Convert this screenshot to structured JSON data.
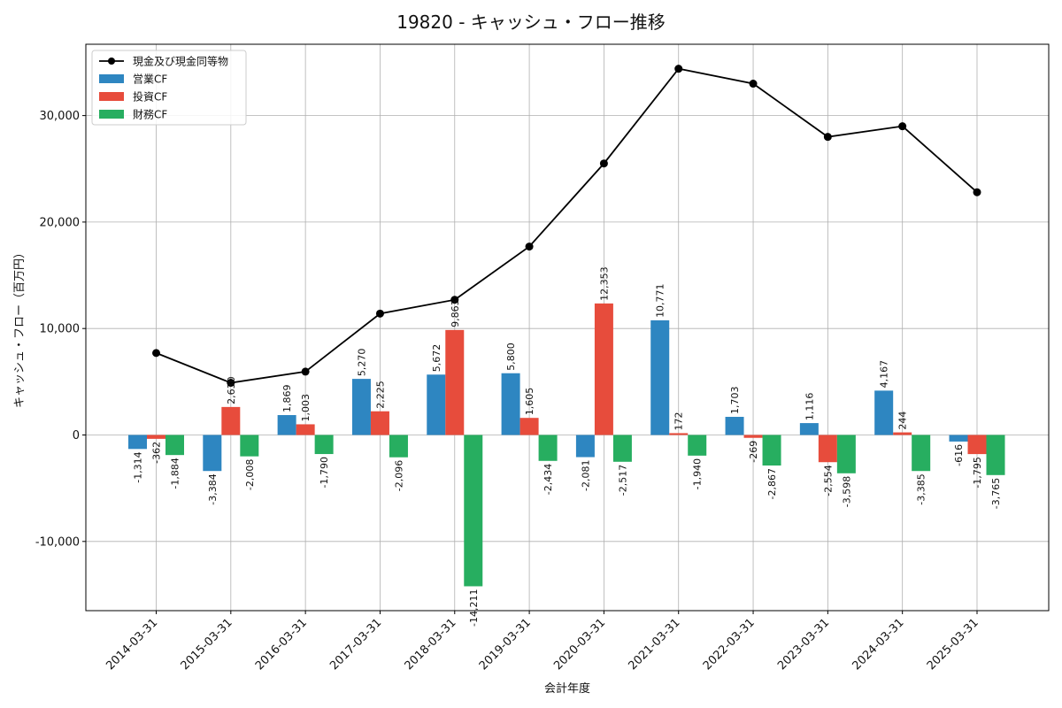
{
  "chart_data": {
    "type": "bar",
    "title": "19820 - キャッシュ・フロー推移",
    "xlabel": "会計年度",
    "ylabel": "キャッシュ・フロー（百万円）",
    "categories": [
      "2014-03-31",
      "2015-03-31",
      "2016-03-31",
      "2017-03-31",
      "2018-03-31",
      "2019-03-31",
      "2020-03-31",
      "2021-03-31",
      "2022-03-31",
      "2023-03-31",
      "2024-03-31",
      "2025-03-31"
    ],
    "series": [
      {
        "name": "営業CF",
        "kind": "bar",
        "color": "#2e86c1",
        "values": [
          -1314,
          -3384,
          1869,
          5270,
          5672,
          5800,
          -2081,
          10771,
          1703,
          1116,
          4167,
          -616
        ],
        "labels": [
          "-1,314",
          "-3,384",
          "1,869",
          "5,270",
          "5,672",
          "5,800",
          "-2,081",
          "10,771",
          "1,703",
          "1,116",
          "4,167",
          "-616"
        ]
      },
      {
        "name": "投資CF",
        "kind": "bar",
        "color": "#e74c3c",
        "values": [
          -362,
          2630,
          1003,
          2225,
          9863,
          1605,
          12353,
          172,
          -269,
          -2554,
          244,
          -1795
        ],
        "labels": [
          "-362",
          "2,630",
          "1,003",
          "2,225",
          "9,863",
          "1,605",
          "12,353",
          "172",
          "-269",
          "-2,554",
          "244",
          "-1,795"
        ]
      },
      {
        "name": "財務CF",
        "kind": "bar",
        "color": "#27ae60",
        "values": [
          -1884,
          -2008,
          -1790,
          -2096,
          -14211,
          -2434,
          -2517,
          -1940,
          -2867,
          -3598,
          -3385,
          -3765
        ],
        "labels": [
          "-1,884",
          "-2,008",
          "-1,790",
          "-2,096",
          "-14,211",
          "-2,434",
          "-2,517",
          "-1,940",
          "-2,867",
          "-3,598",
          "-3,385",
          "-3,765"
        ]
      },
      {
        "name": "現金及び現金同等物",
        "kind": "line",
        "color": "#000000",
        "values": [
          7700,
          4900,
          5950,
          11400,
          12700,
          17700,
          25500,
          34400,
          33000,
          28000,
          29000,
          22800
        ]
      }
    ],
    "ylim": [
      -16500,
      36700
    ],
    "yticks": [
      -10000,
      0,
      10000,
      20000,
      30000
    ],
    "ytick_labels": [
      "-10,000",
      "0",
      "10,000",
      "20,000",
      "30,000"
    ],
    "grid": true,
    "legend_position": "top-left"
  }
}
